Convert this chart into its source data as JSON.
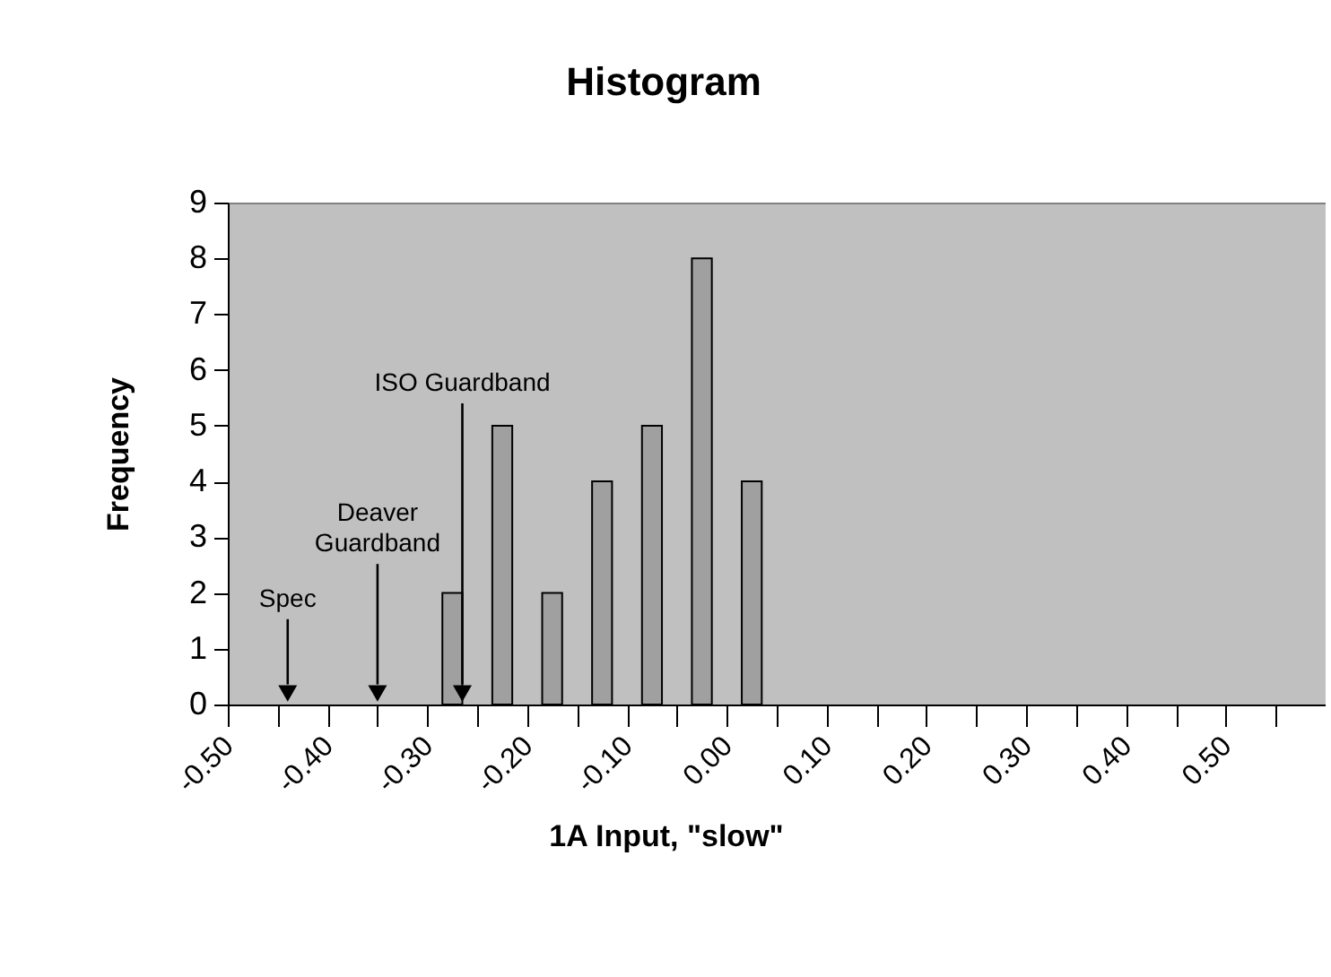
{
  "chart_data": {
    "type": "histogram",
    "title": "Histogram",
    "xlabel": "1A Input,  \"slow\"",
    "ylabel": "Frequency",
    "bins": [
      -0.3,
      -0.25,
      -0.2,
      -0.15,
      -0.1,
      -0.05,
      0.0,
      0.05
    ],
    "values": [
      2,
      5,
      2,
      4,
      5,
      8,
      4
    ],
    "color": "#a0a0a0",
    "xlim": [
      -0.5,
      0.6
    ],
    "xticks": [
      {
        "value": -0.5,
        "label": "-0.50"
      },
      {
        "value": -0.45,
        "label": null
      },
      {
        "value": -0.4,
        "label": "-0.40"
      },
      {
        "value": -0.35,
        "label": null
      },
      {
        "value": -0.3,
        "label": "-0.30"
      },
      {
        "value": -0.25,
        "label": null
      },
      {
        "value": -0.2,
        "label": "-0.20"
      },
      {
        "value": -0.15,
        "label": null
      },
      {
        "value": -0.1,
        "label": "-0.10"
      },
      {
        "value": -0.05,
        "label": null
      },
      {
        "value": 0.0,
        "label": "0.00"
      },
      {
        "value": 0.05,
        "label": null
      },
      {
        "value": 0.1,
        "label": "0.10"
      },
      {
        "value": 0.15,
        "label": null
      },
      {
        "value": 0.2,
        "label": "0.20"
      },
      {
        "value": 0.25,
        "label": null
      },
      {
        "value": 0.3,
        "label": "0.30"
      },
      {
        "value": 0.35,
        "label": null
      },
      {
        "value": 0.4,
        "label": "0.40"
      },
      {
        "value": 0.45,
        "label": null
      },
      {
        "value": 0.5,
        "label": "0.50"
      },
      {
        "value": 0.55,
        "label": null
      }
    ],
    "ylim": [
      0,
      9
    ],
    "yticks": [
      0,
      1,
      2,
      3,
      4,
      5,
      6,
      7,
      8,
      9
    ],
    "grid": false,
    "ref_lines": [
      {
        "axis": "x",
        "value": -0.44,
        "label": "Spec"
      },
      {
        "axis": "x",
        "value": -0.35,
        "label": "Deaver\nGuardband"
      },
      {
        "axis": "x",
        "value": -0.265,
        "label": "ISO Guardband"
      }
    ]
  }
}
